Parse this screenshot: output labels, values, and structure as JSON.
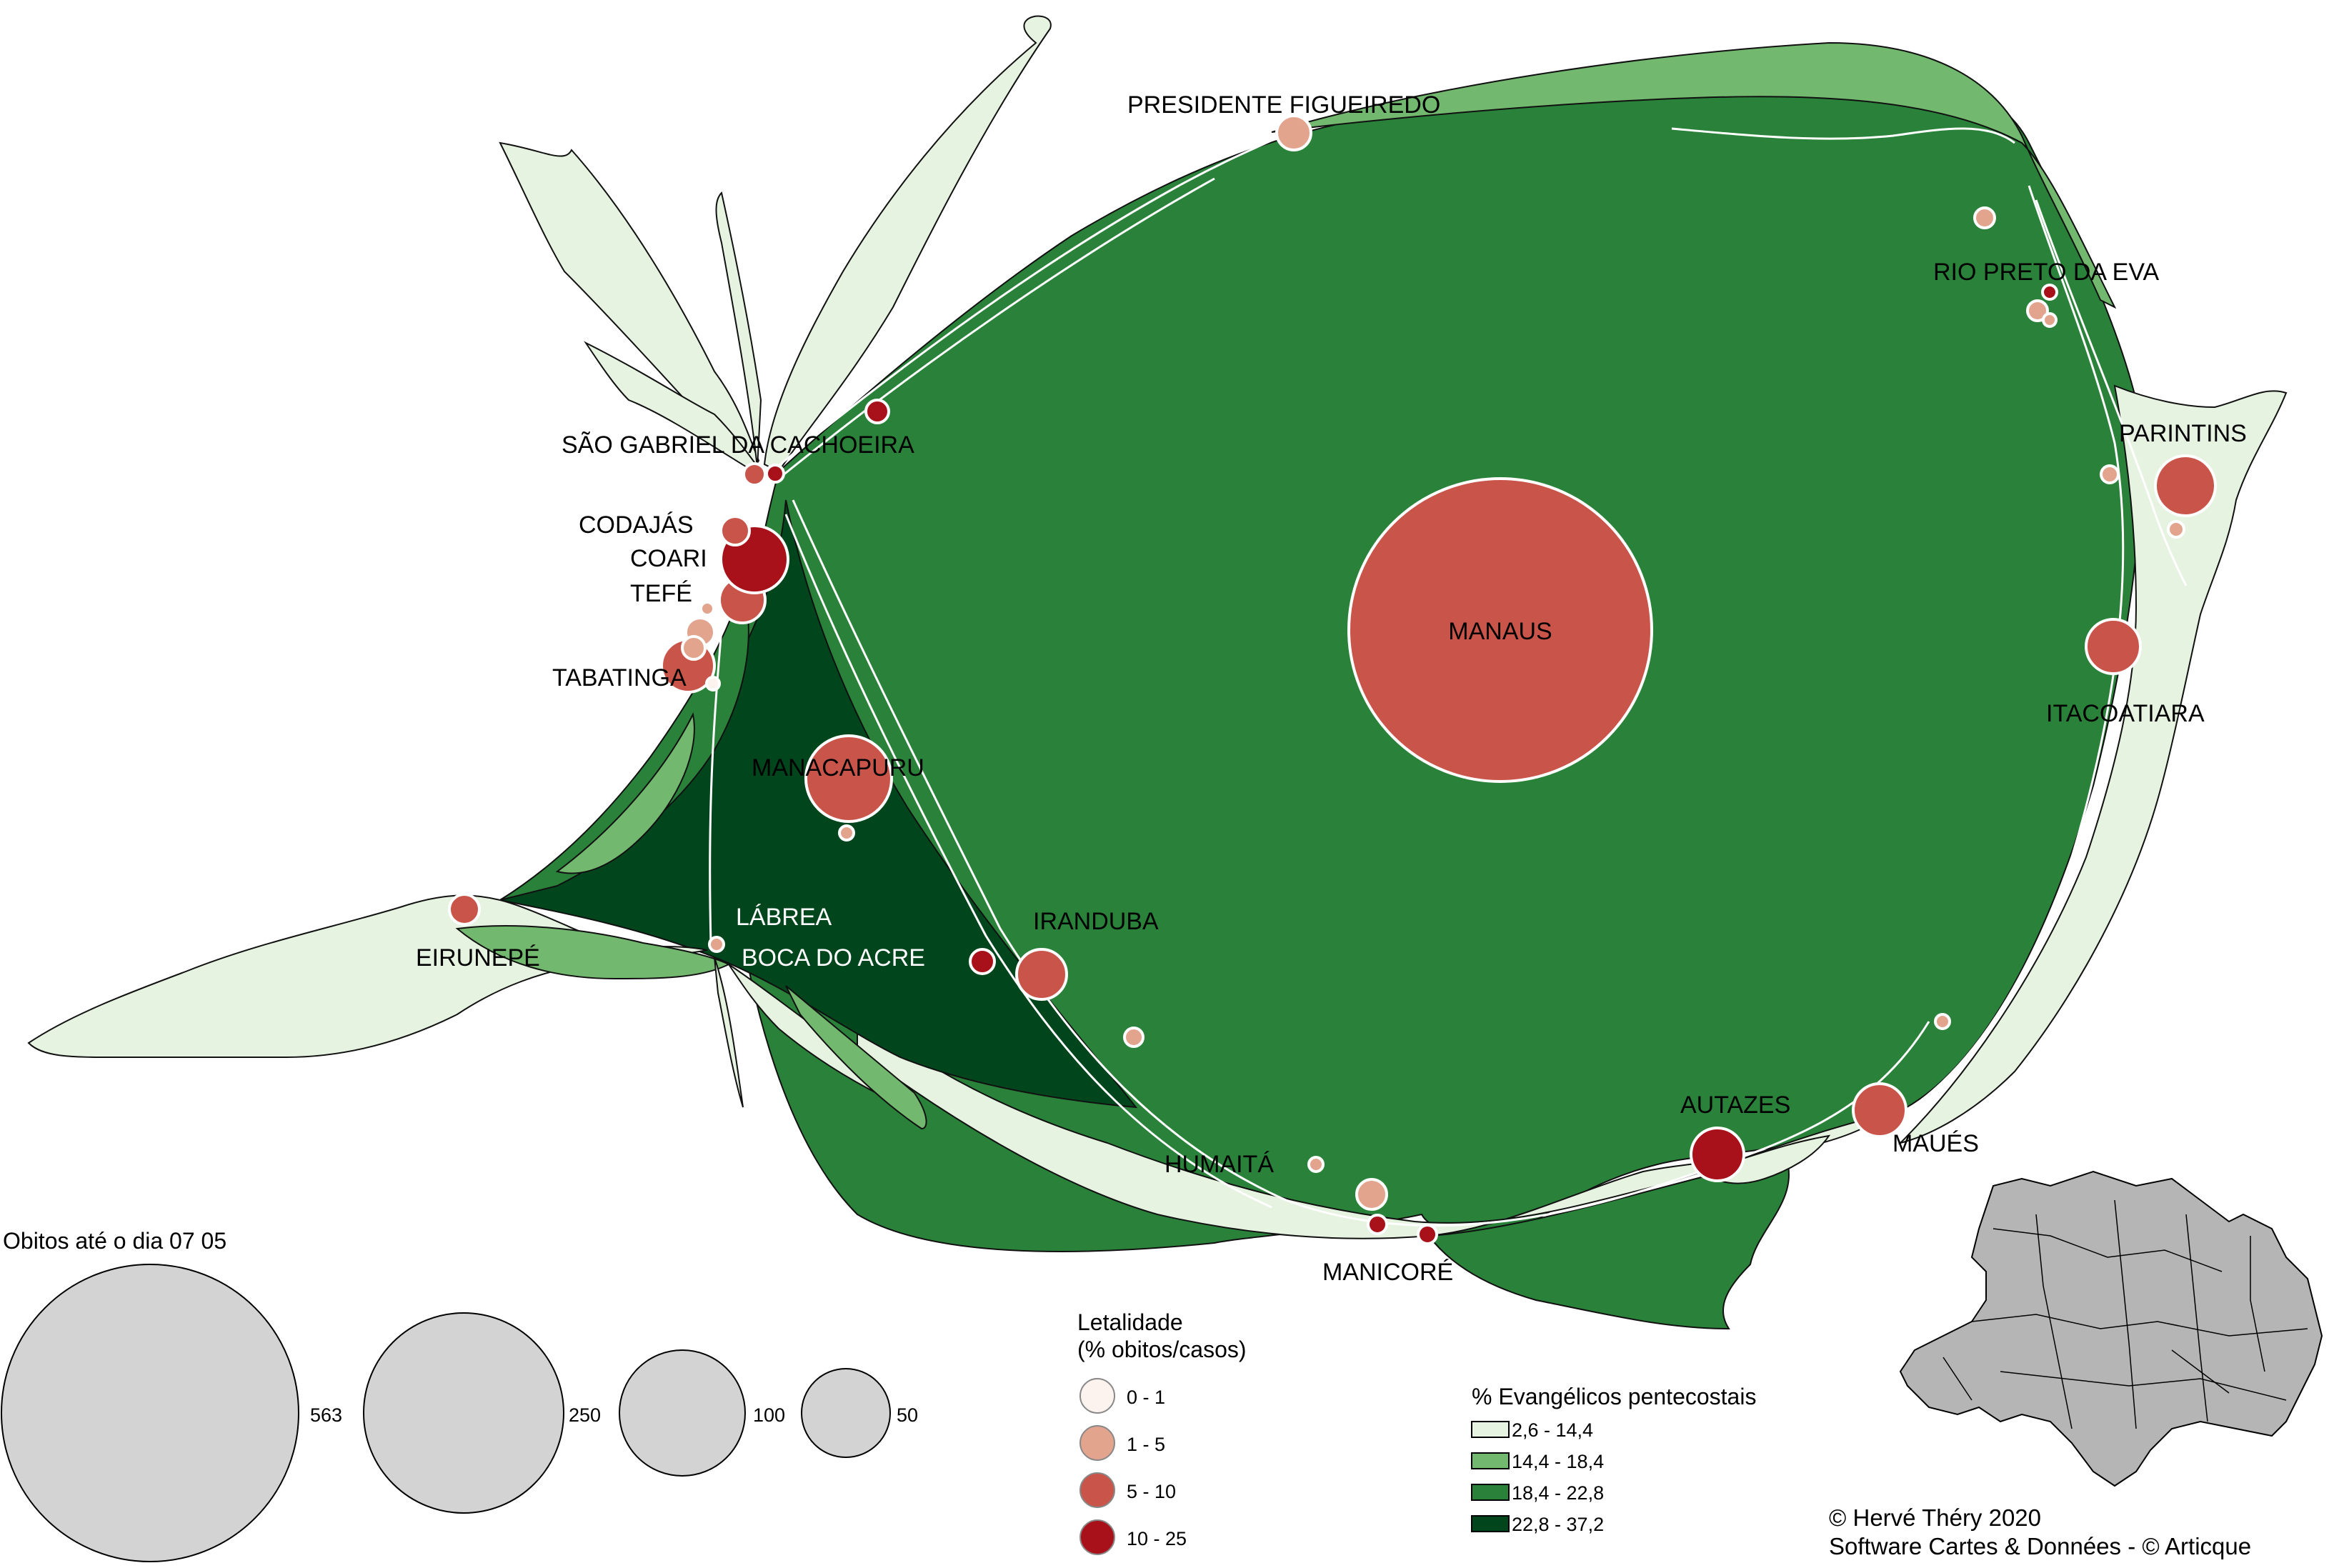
{
  "colors": {
    "class1": "#e6f3e0",
    "class2": "#72b86e",
    "class3": "#2a823a",
    "class4": "#00451c",
    "leth1": "#fdf3ee",
    "leth2": "#e3a48e",
    "leth3": "#c9554a",
    "leth4": "#a8101a",
    "size_circle": "#d3d3d3"
  },
  "municipalities": [
    {
      "name": "MANAUS",
      "deaths_class": "5 - 10"
    },
    {
      "name": "PRESIDENTE FIGUEIREDO",
      "deaths_class": "1 - 5"
    },
    {
      "name": "RIO PRETO DA EVA",
      "deaths_class": "1 - 5"
    },
    {
      "name": "PARINTINS",
      "deaths_class": "5 - 10"
    },
    {
      "name": "ITACOATIARA",
      "deaths_class": "5 - 10"
    },
    {
      "name": "MAUÉS",
      "deaths_class": "5 - 10"
    },
    {
      "name": "AUTAZES",
      "deaths_class": "10 - 25"
    },
    {
      "name": "MANICORÉ",
      "deaths_class": "10 - 25"
    },
    {
      "name": "HUMAITÁ",
      "deaths_class": "1 - 5"
    },
    {
      "name": "IRANDUBA",
      "deaths_class": "5 - 10"
    },
    {
      "name": "BOCA DO ACRE",
      "deaths_class": "10 - 25"
    },
    {
      "name": "LÁBREA",
      "deaths_class": "1 - 5"
    },
    {
      "name": "EIRUNEPÉ",
      "deaths_class": "5 - 10"
    },
    {
      "name": "MANACAPURU",
      "deaths_class": "5 - 10"
    },
    {
      "name": "TABATINGA",
      "deaths_class": "5 - 10"
    },
    {
      "name": "TEFÉ",
      "deaths_class": "5 - 10"
    },
    {
      "name": "COARI",
      "deaths_class": "10 - 25"
    },
    {
      "name": "CODAJÁS",
      "deaths_class": "5 - 10"
    },
    {
      "name": "SÃO GABRIEL DA CACHOEIRA",
      "deaths_class": "10 - 25"
    }
  ],
  "legend_deaths": {
    "title": "Obitos até o dia 07 05",
    "items": [
      {
        "label": "563",
        "value": 563
      },
      {
        "label": "250",
        "value": 250
      },
      {
        "label": "100",
        "value": 100
      },
      {
        "label": "50",
        "value": 50
      }
    ]
  },
  "legend_lethality": {
    "title_line1": "Letalidade",
    "title_line2": "(% obitos/casos)",
    "items": [
      "0 - 1",
      "1 - 5",
      "5 - 10",
      "10 - 25"
    ]
  },
  "legend_evangelicals": {
    "title": "% Evangélicos pentecostais",
    "items": [
      "2,6 - 14,4",
      "14,4 - 18,4",
      "18,4 - 22,8",
      "22,8 - 37,2"
    ]
  },
  "credits": {
    "line1": "© Hervé Théry 2020",
    "line2": "Software  Cartes & Données - © Articque"
  }
}
